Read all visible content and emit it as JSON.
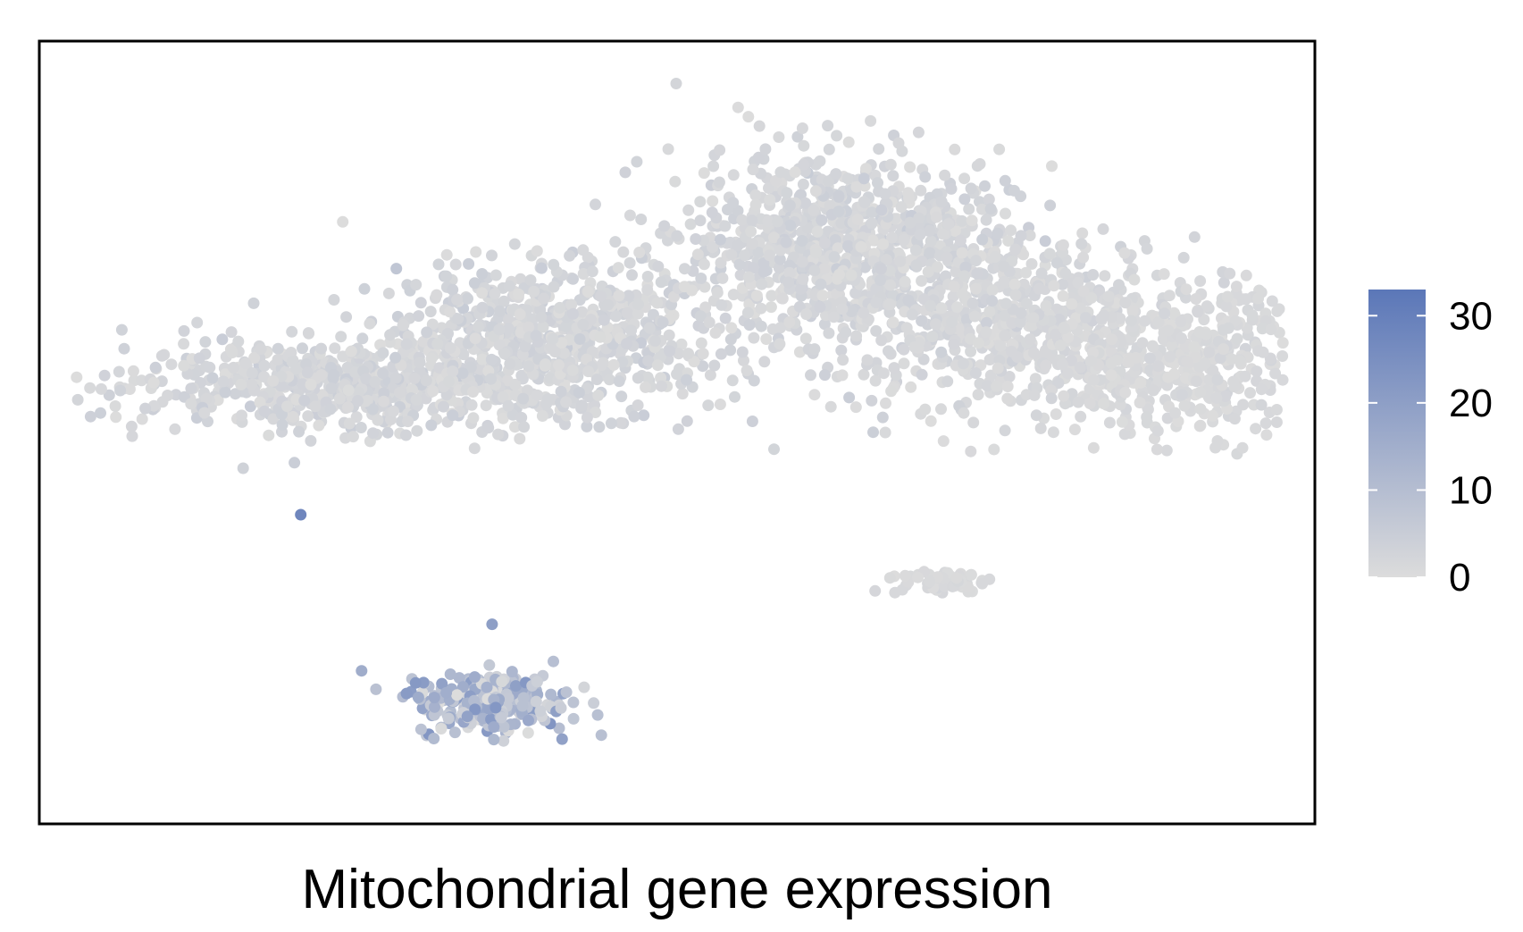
{
  "chart_data": {
    "type": "scatter",
    "title": "",
    "xlabel": "Mitochondrial gene expression",
    "ylabel": "",
    "axes_ticks_visible": false,
    "grid": false,
    "point_color_low": "#dcdcdc",
    "point_color_high": "#5b77b8",
    "colorbar": {
      "placement": "right",
      "min": 0,
      "max": 33,
      "ticks": [
        0,
        10,
        20,
        30
      ],
      "tick_labels": [
        "0",
        "10",
        "20",
        "30"
      ]
    },
    "clusters": [
      {
        "name": "",
        "center": [
          2.4,
          5.6
        ],
        "spread": [
          1.55,
          0.55
        ],
        "count": 650,
        "mean_value": 2
      },
      {
        "name": "",
        "center": [
          4.0,
          6.2
        ],
        "spread": [
          1.25,
          0.85
        ],
        "count": 750,
        "mean_value": 2
      },
      {
        "name": "",
        "center": [
          6.3,
          7.4
        ],
        "spread": [
          1.2,
          1.05
        ],
        "count": 900,
        "mean_value": 2
      },
      {
        "name": "",
        "center": [
          7.6,
          6.3
        ],
        "spread": [
          1.3,
          1.0
        ],
        "count": 600,
        "mean_value": 1.5
      },
      {
        "name": "",
        "center": [
          9.0,
          5.9
        ],
        "spread": [
          1.0,
          0.85
        ],
        "count": 450,
        "mean_value": 1
      },
      {
        "name": "",
        "center": [
          7.1,
          3.1
        ],
        "spread": [
          0.3,
          0.15
        ],
        "count": 60,
        "mean_value": 1
      },
      {
        "name": "",
        "center": [
          3.55,
          1.55
        ],
        "spread": [
          0.55,
          0.35
        ],
        "count": 260,
        "mean_value": 10
      }
    ],
    "highlight_points": [
      {
        "x": 2.05,
        "y": 3.95,
        "value": 28
      },
      {
        "x": 2.95,
        "y": 1.8,
        "value": 22
      },
      {
        "x": 3.55,
        "y": 2.55,
        "value": 20
      }
    ],
    "xlim": [
      0,
      10
    ],
    "ylim": [
      0,
      10
    ]
  }
}
